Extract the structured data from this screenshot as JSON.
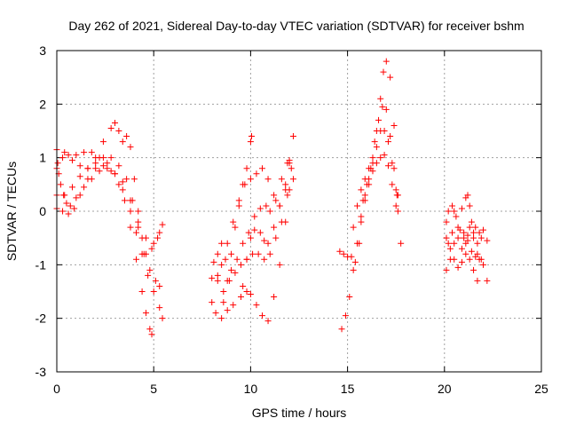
{
  "chart_data": {
    "type": "scatter",
    "title": "Day 262 of 2021, Sidereal Day-to-day VTEC variation (SDTVAR) for receiver bshm",
    "xlabel": "GPS time / hours",
    "ylabel": "SDTVAR / TECUs",
    "xlim": [
      0,
      25
    ],
    "ylim": [
      -3,
      3
    ],
    "xticks": [
      0,
      5,
      10,
      15,
      20,
      25
    ],
    "yticks": [
      -3,
      -2,
      -1,
      0,
      1,
      2,
      3
    ],
    "grid": true,
    "marker": "+",
    "color": "#ff0000",
    "series": [
      {
        "points": [
          [
            0.0,
            0.8
          ],
          [
            0.3,
            1.0
          ],
          [
            0.6,
            1.05
          ],
          [
            1.0,
            1.05
          ],
          [
            1.4,
            1.1
          ],
          [
            1.8,
            1.1
          ],
          [
            2.2,
            1.0
          ],
          [
            2.6,
            0.9
          ],
          [
            3.0,
            0.7
          ],
          [
            3.4,
            0.4
          ],
          [
            3.8,
            0.0
          ],
          [
            4.1,
            -0.4
          ],
          [
            4.4,
            -0.8
          ],
          [
            4.7,
            -1.2
          ],
          [
            5.0,
            -1.5
          ],
          [
            5.3,
            -1.8
          ],
          [
            5.45,
            -2.0
          ]
        ]
      },
      {
        "points": [
          [
            0.0,
            0.3
          ],
          [
            0.4,
            0.3
          ],
          [
            0.8,
            0.45
          ],
          [
            1.2,
            0.65
          ],
          [
            1.6,
            0.8
          ],
          [
            2.0,
            0.9
          ],
          [
            2.4,
            1.0
          ],
          [
            2.8,
            1.0
          ],
          [
            3.2,
            0.85
          ],
          [
            3.6,
            0.6
          ],
          [
            3.9,
            0.2
          ],
          [
            4.2,
            -0.3
          ],
          [
            4.5,
            -0.8
          ],
          [
            4.8,
            -1.1
          ],
          [
            5.1,
            -1.3
          ],
          [
            5.3,
            -1.4
          ]
        ]
      },
      {
        "points": [
          [
            0.0,
            0.05
          ],
          [
            0.3,
            0.0
          ],
          [
            0.6,
            -0.05
          ],
          [
            0.9,
            0.05
          ],
          [
            1.2,
            0.3
          ],
          [
            1.6,
            0.6
          ],
          [
            2.0,
            0.8
          ],
          [
            2.4,
            0.85
          ],
          [
            2.8,
            0.75
          ],
          [
            3.2,
            0.5
          ],
          [
            3.5,
            0.2
          ],
          [
            3.8,
            -0.3
          ],
          [
            4.1,
            -0.9
          ],
          [
            4.4,
            -1.5
          ],
          [
            4.6,
            -1.9
          ],
          [
            4.8,
            -2.2
          ],
          [
            4.9,
            -2.3
          ]
        ]
      },
      {
        "points": [
          [
            0.0,
            1.15
          ],
          [
            0.4,
            1.1
          ],
          [
            0.8,
            0.95
          ],
          [
            1.2,
            0.85
          ],
          [
            1.6,
            0.8
          ],
          [
            2.0,
            1.0
          ],
          [
            2.4,
            1.3
          ],
          [
            2.8,
            1.55
          ],
          [
            3.0,
            1.65
          ],
          [
            3.2,
            1.5
          ],
          [
            3.4,
            1.3
          ],
          [
            3.6,
            1.4
          ],
          [
            3.8,
            1.2
          ],
          [
            4.0,
            0.6
          ],
          [
            4.2,
            0.0
          ],
          [
            4.4,
            -0.5
          ],
          [
            4.6,
            -0.8
          ],
          [
            4.9,
            -0.7
          ],
          [
            5.2,
            -0.5
          ],
          [
            5.45,
            -0.25
          ]
        ]
      },
      {
        "points": [
          [
            0.05,
            0.9
          ],
          [
            0.1,
            0.7
          ],
          [
            0.2,
            0.5
          ],
          [
            0.35,
            0.3
          ],
          [
            0.5,
            0.15
          ],
          [
            0.7,
            0.1
          ],
          [
            1.0,
            0.25
          ],
          [
            1.4,
            0.45
          ],
          [
            1.8,
            0.6
          ],
          [
            2.2,
            0.75
          ],
          [
            2.6,
            0.8
          ],
          [
            3.0,
            0.7
          ],
          [
            3.4,
            0.55
          ],
          [
            3.8,
            0.2
          ],
          [
            4.2,
            -0.2
          ],
          [
            4.6,
            -0.5
          ],
          [
            5.0,
            -0.6
          ],
          [
            5.3,
            -0.4
          ]
        ]
      },
      {
        "points": [
          [
            8.0,
            -1.7
          ],
          [
            8.2,
            -1.9
          ],
          [
            8.5,
            -2.0
          ],
          [
            8.8,
            -1.85
          ],
          [
            9.1,
            -1.75
          ],
          [
            9.5,
            -1.6
          ],
          [
            9.8,
            -1.5
          ],
          [
            10.0,
            -1.55
          ],
          [
            10.3,
            -1.75
          ],
          [
            10.6,
            -1.95
          ],
          [
            10.9,
            -2.05
          ],
          [
            11.2,
            -1.6
          ],
          [
            11.5,
            -1.0
          ],
          [
            11.8,
            -0.2
          ],
          [
            12.0,
            0.4
          ],
          [
            12.2,
            0.6
          ]
        ]
      },
      {
        "points": [
          [
            8.0,
            -1.25
          ],
          [
            8.3,
            -1.3
          ],
          [
            8.6,
            -1.5
          ],
          [
            8.9,
            -1.3
          ],
          [
            9.2,
            -1.15
          ],
          [
            9.5,
            -1.0
          ],
          [
            9.8,
            -0.9
          ],
          [
            10.1,
            -0.8
          ],
          [
            10.4,
            -0.8
          ],
          [
            10.7,
            -0.9
          ],
          [
            11.0,
            -0.8
          ],
          [
            11.3,
            -0.5
          ],
          [
            11.6,
            -0.2
          ],
          [
            11.9,
            0.3
          ],
          [
            12.1,
            0.8
          ]
        ]
      },
      {
        "points": [
          [
            8.1,
            -0.95
          ],
          [
            8.3,
            -0.8
          ],
          [
            8.5,
            -0.6
          ],
          [
            8.7,
            -0.9
          ],
          [
            9.0,
            -1.1
          ],
          [
            9.3,
            -0.9
          ],
          [
            9.6,
            -0.6
          ],
          [
            9.9,
            -0.4
          ],
          [
            10.2,
            -0.35
          ],
          [
            10.5,
            -0.4
          ],
          [
            10.7,
            -0.55
          ],
          [
            10.9,
            -0.6
          ],
          [
            11.2,
            -0.3
          ],
          [
            11.5,
            0.1
          ],
          [
            11.8,
            0.5
          ],
          [
            12.0,
            0.95
          ]
        ]
      },
      {
        "points": [
          [
            8.3,
            -1.2
          ],
          [
            8.5,
            -1.0
          ],
          [
            8.8,
            -0.6
          ],
          [
            9.1,
            -0.2
          ],
          [
            9.4,
            0.2
          ],
          [
            9.7,
            0.5
          ],
          [
            10.0,
            0.6
          ],
          [
            10.3,
            0.7
          ],
          [
            10.6,
            0.8
          ],
          [
            10.9,
            0.6
          ],
          [
            11.2,
            0.3
          ],
          [
            11.5,
            0.1
          ],
          [
            11.8,
            0.4
          ],
          [
            12.0,
            0.9
          ],
          [
            12.2,
            1.4
          ]
        ]
      },
      {
        "points": [
          [
            8.6,
            -1.7
          ],
          [
            8.8,
            -1.3
          ],
          [
            9.0,
            -0.8
          ],
          [
            9.2,
            -0.3
          ],
          [
            9.4,
            0.1
          ],
          [
            9.6,
            0.5
          ],
          [
            9.8,
            0.8
          ],
          [
            10.0,
            1.3
          ],
          [
            10.05,
            1.4
          ]
        ]
      },
      {
        "points": [
          [
            9.6,
            -1.4
          ],
          [
            9.8,
            -0.9
          ],
          [
            10.0,
            -0.5
          ],
          [
            10.2,
            -0.1
          ],
          [
            10.5,
            0.05
          ],
          [
            10.8,
            0.1
          ],
          [
            11.0,
            0.0
          ],
          [
            11.3,
            0.2
          ],
          [
            11.6,
            0.6
          ],
          [
            11.9,
            0.9
          ]
        ]
      },
      {
        "points": [
          [
            14.6,
            -0.75
          ],
          [
            14.8,
            -0.8
          ],
          [
            15.0,
            -0.85
          ],
          [
            15.2,
            -0.85
          ],
          [
            15.4,
            -0.95
          ],
          [
            15.6,
            -0.6
          ],
          [
            15.7,
            -0.2
          ]
        ]
      },
      {
        "points": [
          [
            14.7,
            -2.2
          ],
          [
            14.9,
            -1.95
          ],
          [
            15.1,
            -1.6
          ],
          [
            15.3,
            -1.1
          ],
          [
            15.5,
            -0.6
          ],
          [
            15.7,
            -0.1
          ],
          [
            15.9,
            0.3
          ],
          [
            16.1,
            0.6
          ],
          [
            16.3,
            0.9
          ],
          [
            16.5,
            1.2
          ],
          [
            16.7,
            1.5
          ],
          [
            16.9,
            1.5
          ],
          [
            17.1,
            1.3
          ],
          [
            17.3,
            0.9
          ],
          [
            17.5,
            0.4
          ],
          [
            17.6,
            0.0
          ]
        ]
      },
      {
        "points": [
          [
            15.3,
            -0.3
          ],
          [
            15.5,
            0.1
          ],
          [
            15.7,
            0.4
          ],
          [
            15.9,
            0.6
          ],
          [
            16.1,
            0.8
          ],
          [
            16.3,
            1.0
          ],
          [
            16.5,
            1.5
          ],
          [
            16.7,
            2.1
          ],
          [
            16.85,
            2.6
          ],
          [
            17.0,
            2.8
          ],
          [
            17.2,
            2.5
          ],
          [
            17.4,
            1.6
          ],
          [
            17.6,
            0.3
          ],
          [
            17.75,
            -0.6
          ]
        ]
      },
      {
        "points": [
          [
            15.8,
            0.2
          ],
          [
            16.0,
            0.5
          ],
          [
            16.2,
            0.8
          ],
          [
            16.4,
            1.3
          ],
          [
            16.6,
            1.7
          ],
          [
            16.8,
            1.95
          ],
          [
            17.0,
            1.9
          ],
          [
            17.2,
            1.4
          ],
          [
            17.4,
            0.8
          ],
          [
            17.55,
            0.3
          ]
        ]
      },
      {
        "points": [
          [
            15.9,
            0.2
          ],
          [
            16.1,
            0.5
          ],
          [
            16.3,
            0.75
          ],
          [
            16.5,
            0.9
          ],
          [
            16.7,
            1.0
          ],
          [
            16.9,
            1.05
          ],
          [
            17.1,
            0.85
          ],
          [
            17.3,
            0.5
          ],
          [
            17.5,
            0.1
          ]
        ]
      },
      {
        "points": [
          [
            20.1,
            -0.2
          ],
          [
            20.2,
            0.0
          ],
          [
            20.4,
            0.1
          ],
          [
            20.5,
            0.0
          ],
          [
            20.7,
            -0.5
          ],
          [
            20.9,
            -0.7
          ],
          [
            21.1,
            -0.6
          ],
          [
            21.3,
            -0.3
          ],
          [
            21.5,
            -0.5
          ],
          [
            21.7,
            -0.6
          ],
          [
            21.9,
            -0.5
          ]
        ]
      },
      {
        "points": [
          [
            20.1,
            -1.1
          ],
          [
            20.3,
            -0.9
          ],
          [
            20.5,
            -0.6
          ],
          [
            20.7,
            -0.3
          ],
          [
            20.9,
            0.05
          ],
          [
            21.1,
            0.25
          ],
          [
            21.2,
            0.3
          ],
          [
            21.3,
            0.1
          ],
          [
            21.5,
            -0.4
          ],
          [
            21.7,
            -0.8
          ],
          [
            21.9,
            -0.9
          ]
        ]
      },
      {
        "points": [
          [
            20.1,
            -0.5
          ],
          [
            20.3,
            -0.7
          ],
          [
            20.5,
            -0.9
          ],
          [
            20.7,
            -1.05
          ],
          [
            20.9,
            -0.95
          ],
          [
            21.1,
            -0.8
          ],
          [
            21.3,
            -0.9
          ],
          [
            21.5,
            -1.1
          ],
          [
            21.7,
            -1.3
          ]
        ]
      },
      {
        "points": [
          [
            20.2,
            -0.6
          ],
          [
            20.4,
            -0.4
          ],
          [
            20.6,
            -0.1
          ],
          [
            20.8,
            -0.35
          ],
          [
            21.0,
            -0.5
          ],
          [
            21.2,
            -0.45
          ],
          [
            21.4,
            -0.2
          ],
          [
            21.6,
            -0.3
          ],
          [
            21.8,
            -0.4
          ],
          [
            22.0,
            -0.35
          ],
          [
            22.2,
            -0.55
          ]
        ]
      },
      {
        "points": [
          [
            21.0,
            -0.4
          ],
          [
            21.2,
            -0.55
          ],
          [
            21.4,
            -0.75
          ],
          [
            21.6,
            -0.85
          ],
          [
            21.8,
            -0.9
          ],
          [
            22.0,
            -1.0
          ],
          [
            22.2,
            -1.3
          ]
        ]
      }
    ]
  }
}
